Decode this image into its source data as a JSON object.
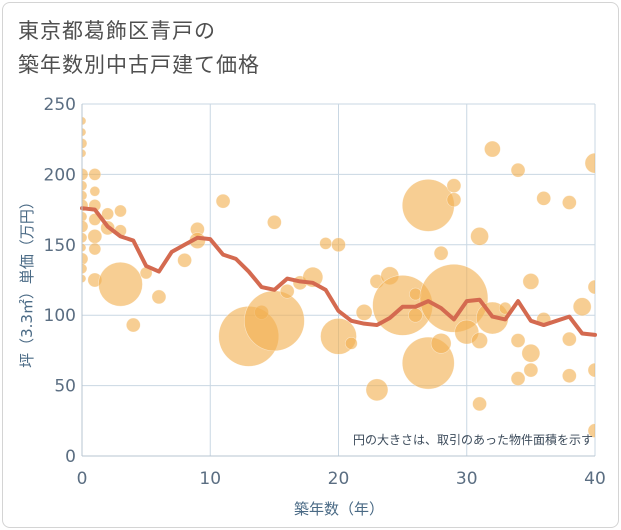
{
  "chart_data": {
    "type": "scatter",
    "title_lines": [
      "東京都葛飾区青戸の",
      "築年数別中古戸建て価格"
    ],
    "xlabel": "築年数（年）",
    "ylabel": "坪（3.3㎡）単価（万円）",
    "xlim": [
      0,
      40
    ],
    "ylim": [
      0,
      250
    ],
    "x_ticks": [
      0,
      10,
      20,
      30,
      40
    ],
    "y_ticks": [
      0,
      50,
      100,
      150,
      200,
      250
    ],
    "grid": true,
    "note": "円の大きさは、取引のあった物件面積を示す",
    "colors": {
      "bubble": "#f2b050",
      "line": "#d46a50",
      "grid": "#c9d7e3",
      "axis": "#b7c4d0"
    },
    "series": [
      {
        "kind": "bubbles",
        "points": [
          {
            "x": 0,
            "y": 238,
            "s": 4
          },
          {
            "x": 0,
            "y": 230,
            "s": 4
          },
          {
            "x": 0,
            "y": 222,
            "s": 5
          },
          {
            "x": 0,
            "y": 215,
            "s": 4
          },
          {
            "x": 0,
            "y": 200,
            "s": 6
          },
          {
            "x": 0,
            "y": 192,
            "s": 5
          },
          {
            "x": 0,
            "y": 185,
            "s": 5
          },
          {
            "x": 0,
            "y": 178,
            "s": 6
          },
          {
            "x": 0,
            "y": 170,
            "s": 5
          },
          {
            "x": 0,
            "y": 163,
            "s": 6
          },
          {
            "x": 0,
            "y": 155,
            "s": 5
          },
          {
            "x": 0,
            "y": 148,
            "s": 4
          },
          {
            "x": 0,
            "y": 140,
            "s": 6
          },
          {
            "x": 0,
            "y": 133,
            "s": 5
          },
          {
            "x": 0,
            "y": 126,
            "s": 4
          },
          {
            "x": 1,
            "y": 200,
            "s": 6
          },
          {
            "x": 1,
            "y": 188,
            "s": 5
          },
          {
            "x": 1,
            "y": 178,
            "s": 6
          },
          {
            "x": 1,
            "y": 168,
            "s": 6
          },
          {
            "x": 1,
            "y": 156,
            "s": 7
          },
          {
            "x": 1,
            "y": 147,
            "s": 6
          },
          {
            "x": 1,
            "y": 125,
            "s": 7
          },
          {
            "x": 2,
            "y": 172,
            "s": 6
          },
          {
            "x": 2,
            "y": 162,
            "s": 7
          },
          {
            "x": 3,
            "y": 174,
            "s": 6
          },
          {
            "x": 3,
            "y": 160,
            "s": 6
          },
          {
            "x": 3,
            "y": 122,
            "s": 22
          },
          {
            "x": 4,
            "y": 93,
            "s": 7
          },
          {
            "x": 5,
            "y": 130,
            "s": 6
          },
          {
            "x": 6,
            "y": 113,
            "s": 7
          },
          {
            "x": 8,
            "y": 139,
            "s": 7
          },
          {
            "x": 9,
            "y": 161,
            "s": 7
          },
          {
            "x": 9,
            "y": 153,
            "s": 8
          },
          {
            "x": 11,
            "y": 181,
            "s": 7
          },
          {
            "x": 13,
            "y": 85,
            "s": 30
          },
          {
            "x": 14,
            "y": 102,
            "s": 7
          },
          {
            "x": 15,
            "y": 166,
            "s": 7
          },
          {
            "x": 15,
            "y": 96,
            "s": 30
          },
          {
            "x": 16,
            "y": 117,
            "s": 7
          },
          {
            "x": 17,
            "y": 123,
            "s": 7
          },
          {
            "x": 18,
            "y": 127,
            "s": 10
          },
          {
            "x": 19,
            "y": 151,
            "s": 6
          },
          {
            "x": 20,
            "y": 150,
            "s": 7
          },
          {
            "x": 20,
            "y": 85,
            "s": 18
          },
          {
            "x": 21,
            "y": 80,
            "s": 6
          },
          {
            "x": 22,
            "y": 102,
            "s": 8
          },
          {
            "x": 23,
            "y": 47,
            "s": 11
          },
          {
            "x": 23,
            "y": 124,
            "s": 7
          },
          {
            "x": 24,
            "y": 128,
            "s": 9
          },
          {
            "x": 25,
            "y": 107,
            "s": 30
          },
          {
            "x": 26,
            "y": 115,
            "s": 6
          },
          {
            "x": 26,
            "y": 100,
            "s": 7
          },
          {
            "x": 27,
            "y": 178,
            "s": 26
          },
          {
            "x": 27,
            "y": 66,
            "s": 26
          },
          {
            "x": 28,
            "y": 144,
            "s": 7
          },
          {
            "x": 28,
            "y": 80,
            "s": 10
          },
          {
            "x": 29,
            "y": 192,
            "s": 7
          },
          {
            "x": 29,
            "y": 182,
            "s": 7
          },
          {
            "x": 29,
            "y": 112,
            "s": 34
          },
          {
            "x": 30,
            "y": 88,
            "s": 12
          },
          {
            "x": 31,
            "y": 156,
            "s": 9
          },
          {
            "x": 31,
            "y": 82,
            "s": 8
          },
          {
            "x": 31,
            "y": 37,
            "s": 7
          },
          {
            "x": 32,
            "y": 218,
            "s": 8
          },
          {
            "x": 32,
            "y": 98,
            "s": 16
          },
          {
            "x": 33,
            "y": 105,
            "s": 6
          },
          {
            "x": 34,
            "y": 203,
            "s": 7
          },
          {
            "x": 34,
            "y": 82,
            "s": 7
          },
          {
            "x": 34,
            "y": 55,
            "s": 7
          },
          {
            "x": 35,
            "y": 124,
            "s": 8
          },
          {
            "x": 35,
            "y": 73,
            "s": 9
          },
          {
            "x": 35,
            "y": 61,
            "s": 7
          },
          {
            "x": 36,
            "y": 183,
            "s": 7
          },
          {
            "x": 36,
            "y": 97,
            "s": 7
          },
          {
            "x": 38,
            "y": 180,
            "s": 7
          },
          {
            "x": 38,
            "y": 83,
            "s": 7
          },
          {
            "x": 38,
            "y": 57,
            "s": 7
          },
          {
            "x": 39,
            "y": 106,
            "s": 9
          },
          {
            "x": 40,
            "y": 208,
            "s": 10
          },
          {
            "x": 40,
            "y": 120,
            "s": 7
          },
          {
            "x": 40,
            "y": 61,
            "s": 7
          },
          {
            "x": 40,
            "y": 18,
            "s": 7
          }
        ]
      },
      {
        "kind": "line",
        "x": [
          0,
          1,
          2,
          3,
          4,
          5,
          6,
          7,
          8,
          9,
          10,
          11,
          12,
          13,
          14,
          15,
          16,
          17,
          18,
          19,
          20,
          21,
          22,
          23,
          24,
          25,
          26,
          27,
          28,
          29,
          30,
          31,
          32,
          33,
          34,
          35,
          36,
          37,
          38,
          39,
          40
        ],
        "y": [
          176,
          175,
          163,
          156,
          153,
          135,
          131,
          145,
          150,
          155,
          154,
          143,
          140,
          131,
          120,
          118,
          126,
          124,
          123,
          118,
          103,
          96,
          94,
          93,
          98,
          106,
          106,
          110,
          105,
          97,
          110,
          111,
          99,
          97,
          110,
          96,
          93,
          96,
          99,
          87,
          86
        ]
      }
    ]
  }
}
